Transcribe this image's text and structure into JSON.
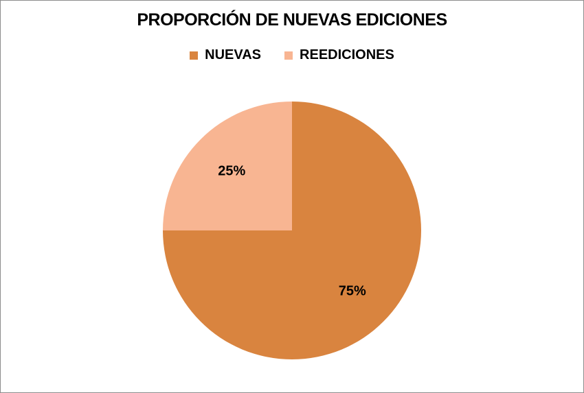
{
  "chart_data": {
    "type": "pie",
    "title": "PROPORCIÓN DE NUEVAS EDICIONES",
    "legend_position": "top",
    "categories": [
      "NUEVAS",
      "REEDICIONES"
    ],
    "values": [
      75,
      25
    ],
    "data_labels": [
      "75%",
      "25%"
    ],
    "colors": [
      "#D9843F",
      "#F8B592"
    ]
  }
}
